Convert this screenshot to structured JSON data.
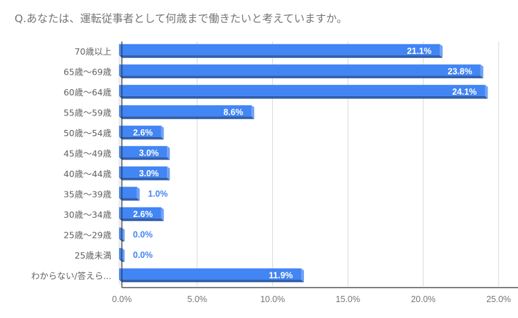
{
  "chart_data": {
    "type": "bar",
    "orientation": "horizontal",
    "title": "Q.あなたは、運転従事者として何歳まで働きたいと考えていますか。",
    "categories": [
      "70歳以上",
      "65歳～69歳",
      "60歳～64歳",
      "55歳～59歳",
      "50歳～54歳",
      "45歳～49歳",
      "40歳～44歳",
      "35歳～39歳",
      "30歳～34歳",
      "25歳～29歳",
      "25歳未満",
      "わからない/答えら..."
    ],
    "values": [
      21.1,
      23.8,
      24.1,
      8.6,
      2.6,
      3.0,
      3.0,
      1.0,
      2.6,
      0.0,
      0.0,
      11.9
    ],
    "data_labels": [
      "21.1%",
      "23.8%",
      "24.1%",
      "8.6%",
      "2.6%",
      "3.0%",
      "3.0%",
      "1.0%",
      "2.6%",
      "0.0%",
      "0.0%",
      "11.9%"
    ],
    "xlim": [
      0,
      25
    ],
    "xticks": [
      "0.0%",
      "5.0%",
      "10.0%",
      "15.0%",
      "20.0%",
      "25.0%"
    ],
    "xlabel": "",
    "ylabel": "",
    "grid": true,
    "legend": "none",
    "colors": {
      "bar": "#4285f4",
      "bar_dark": "#2f5faf",
      "bar_side": "#6fa2f7",
      "label_outside": "#4285f4",
      "grid": "#d9d9d9"
    }
  }
}
